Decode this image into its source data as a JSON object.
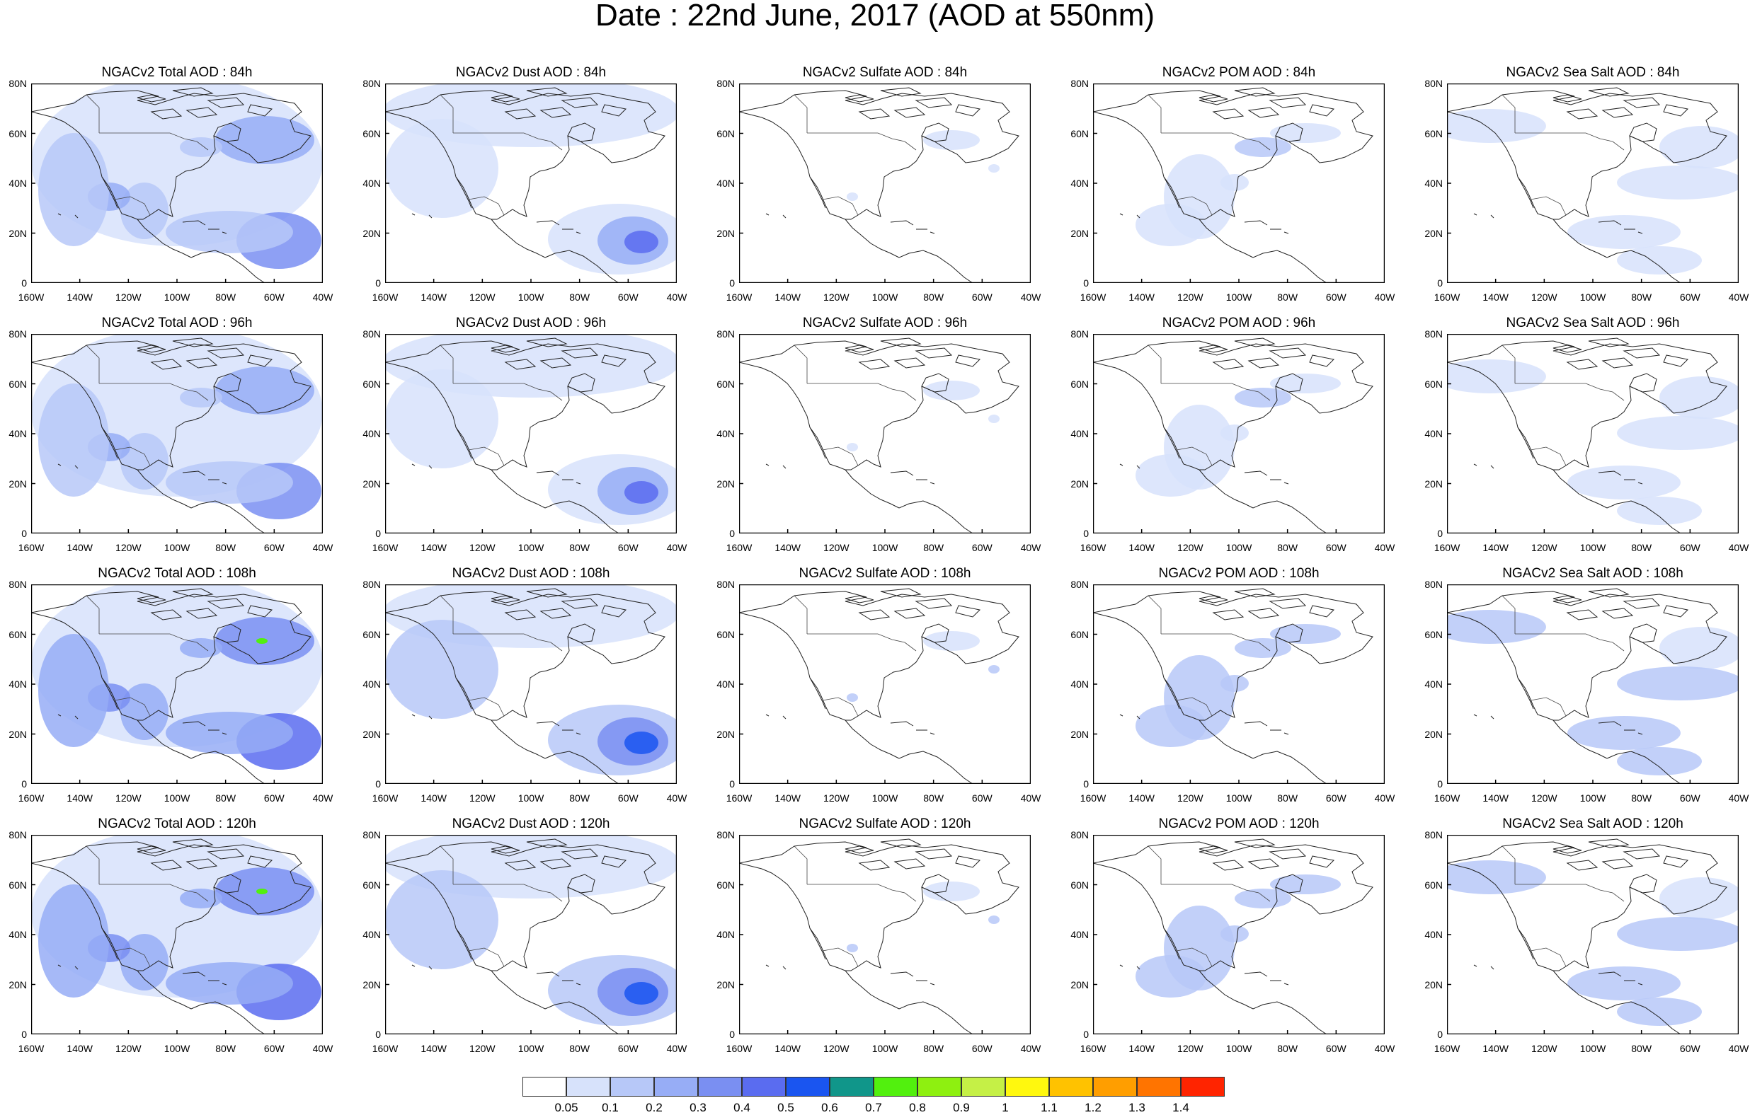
{
  "title": "Date : 22nd June, 2017 (AOD at 550nm)",
  "rows": [
    {
      "hour": "84h",
      "panels": [
        "NGACv2 Total AOD : 84h",
        "NGACv2 Dust AOD : 84h",
        "NGACv2 Sulfate AOD : 84h",
        "NGACv2 POM AOD : 84h",
        "NGACv2 Sea Salt AOD : 84h"
      ]
    },
    {
      "hour": "96h",
      "panels": [
        "NGACv2 Total AOD : 96h",
        "NGACv2 Dust AOD : 96h",
        "NGACv2 Sulfate AOD : 96h",
        "NGACv2 POM AOD : 96h",
        "NGACv2 Sea Salt AOD : 96h"
      ]
    },
    {
      "hour": "108h",
      "panels": [
        "NGACv2 Total AOD : 108h",
        "NGACv2 Dust AOD : 108h",
        "NGACv2 Sulfate AOD : 108h",
        "NGACv2 POM AOD : 108h",
        "NGACv2 Sea Salt AOD : 108h"
      ]
    },
    {
      "hour": "120h",
      "panels": [
        "NGACv2 Total AOD : 120h",
        "NGACv2 Dust AOD : 120h",
        "NGACv2 Sulfate AOD : 120h",
        "NGACv2 POM AOD : 120h",
        "NGACv2 Sea Salt  AOD : 120h"
      ]
    }
  ],
  "y_axis_labels": [
    "80N",
    "60N",
    "40N",
    "20N",
    "0"
  ],
  "x_axis_labels": [
    "160W",
    "140W",
    "120W",
    "100W",
    "80W",
    "60W",
    "40W"
  ],
  "colorbar": {
    "colors": [
      "#ffffff",
      "#d7e2fb",
      "#b7c8f8",
      "#97adf6",
      "#7a8ff2",
      "#5a6cf0",
      "#1a55f0",
      "#10968a",
      "#52f00e",
      "#8ef010",
      "#c5f046",
      "#fff80e",
      "#ffc200",
      "#ff9e00",
      "#ff7400",
      "#ff2400"
    ],
    "labels": [
      "0.05",
      "0.1",
      "0.2",
      "0.3",
      "0.4",
      "0.5",
      "0.6",
      "0.7",
      "0.8",
      "0.9",
      "1",
      "1.1",
      "1.2",
      "1.3",
      "1.4"
    ]
  }
}
